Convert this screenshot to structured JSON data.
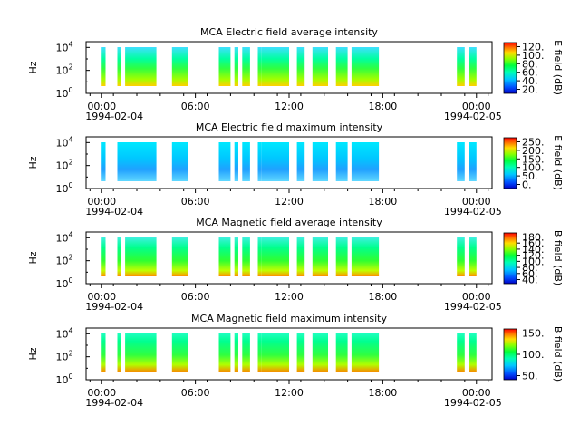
{
  "chart_data": [
    {
      "type": "heatmap",
      "title": "MCA  Electric field average intensity",
      "ylabel": "Hz",
      "y_scale": "log",
      "y_ticks": [
        {
          "base": "10",
          "exp": "0"
        },
        {
          "base": "10",
          "exp": "2"
        },
        {
          "base": "10",
          "exp": "4"
        }
      ],
      "x_ticks": [
        "00:00",
        "06:00",
        "12:00",
        "18:00",
        "00:00"
      ],
      "x_dates": [
        "1994-02-04",
        "1994-02-05"
      ],
      "colorbar": {
        "label": "E field (dB)",
        "ticks": [
          "120.",
          "100.",
          "80.",
          "60.",
          "40.",
          "20."
        ]
      },
      "data_blocks_hours": [
        [
          0,
          0.25
        ],
        [
          1,
          1.25
        ],
        [
          1.5,
          3.5
        ],
        [
          4.5,
          5.5
        ],
        [
          7.5,
          8.25
        ],
        [
          8.5,
          8.75
        ],
        [
          9,
          9.5
        ],
        [
          10,
          10.25
        ],
        [
          10.25,
          10.5
        ],
        [
          10.5,
          12
        ],
        [
          12.5,
          13
        ],
        [
          13.5,
          14.5
        ],
        [
          15,
          15.75
        ],
        [
          16,
          17.75
        ],
        [
          22.75,
          23.25
        ],
        [
          23.5,
          24
        ]
      ]
    },
    {
      "type": "heatmap",
      "title": "MCA  Electric field maximum intensity",
      "ylabel": "Hz",
      "y_scale": "log",
      "y_ticks": [
        {
          "base": "10",
          "exp": "0"
        },
        {
          "base": "10",
          "exp": "2"
        },
        {
          "base": "10",
          "exp": "4"
        }
      ],
      "x_ticks": [
        "00:00",
        "06:00",
        "12:00",
        "18:00",
        "00:00"
      ],
      "x_dates": [
        "1994-02-04",
        "1994-02-05"
      ],
      "colorbar": {
        "label": "E field (dB)",
        "ticks": [
          "250.",
          "200.",
          "150.",
          "100.",
          "50.",
          "0."
        ]
      },
      "data_blocks_hours": [
        [
          0,
          0.25
        ],
        [
          1,
          3.5
        ],
        [
          4.5,
          5.5
        ],
        [
          7.5,
          8.25
        ],
        [
          8.5,
          8.75
        ],
        [
          9,
          9.5
        ],
        [
          10,
          10.25
        ],
        [
          10.25,
          10.5
        ],
        [
          10.5,
          12
        ],
        [
          12.5,
          13
        ],
        [
          13.5,
          14.5
        ],
        [
          15,
          15.75
        ],
        [
          16,
          17.75
        ],
        [
          22.75,
          23.25
        ],
        [
          23.5,
          24
        ]
      ]
    },
    {
      "type": "heatmap",
      "title": "MCA  Magnetic field average intensity",
      "ylabel": "Hz",
      "y_scale": "log",
      "y_ticks": [
        {
          "base": "10",
          "exp": "0"
        },
        {
          "base": "10",
          "exp": "2"
        },
        {
          "base": "10",
          "exp": "4"
        }
      ],
      "x_ticks": [
        "00:00",
        "06:00",
        "12:00",
        "18:00",
        "00:00"
      ],
      "x_dates": [
        "1994-02-04",
        "1994-02-05"
      ],
      "colorbar": {
        "label": "B field (dB)",
        "ticks": [
          "180.",
          "160.",
          "140.",
          "120.",
          "100.",
          "80.",
          "60.",
          "40."
        ]
      },
      "data_blocks_hours": [
        [
          0,
          0.25
        ],
        [
          1,
          1.25
        ],
        [
          1.5,
          3.5
        ],
        [
          4.5,
          5.5
        ],
        [
          7.5,
          8.25
        ],
        [
          8.5,
          8.75
        ],
        [
          9,
          9.5
        ],
        [
          10,
          10.25
        ],
        [
          10.25,
          10.5
        ],
        [
          10.5,
          12
        ],
        [
          12.5,
          13
        ],
        [
          13.5,
          14.5
        ],
        [
          15,
          15.75
        ],
        [
          16,
          17.75
        ],
        [
          22.75,
          23.25
        ],
        [
          23.5,
          24
        ]
      ]
    },
    {
      "type": "heatmap",
      "title": "MCA  Magnetic field maximum intensity",
      "ylabel": "Hz",
      "y_scale": "log",
      "y_ticks": [
        {
          "base": "10",
          "exp": "0"
        },
        {
          "base": "10",
          "exp": "2"
        },
        {
          "base": "10",
          "exp": "4"
        }
      ],
      "x_ticks": [
        "00:00",
        "06:00",
        "12:00",
        "18:00",
        "00:00"
      ],
      "x_dates": [
        "1994-02-04",
        "1994-02-05"
      ],
      "colorbar": {
        "label": "B field (dB)",
        "ticks": [
          "150.",
          "100.",
          "50."
        ]
      },
      "data_blocks_hours": [
        [
          0,
          0.25
        ],
        [
          1,
          1.25
        ],
        [
          1.5,
          3.5
        ],
        [
          4.5,
          5.5
        ],
        [
          7.5,
          8.25
        ],
        [
          8.5,
          8.75
        ],
        [
          9,
          9.5
        ],
        [
          10,
          10.25
        ],
        [
          10.25,
          10.5
        ],
        [
          10.5,
          12
        ],
        [
          12.5,
          13
        ],
        [
          13.5,
          14.5
        ],
        [
          15,
          15.75
        ],
        [
          16,
          17.75
        ],
        [
          22.75,
          23.25
        ],
        [
          23.5,
          24
        ]
      ]
    }
  ]
}
